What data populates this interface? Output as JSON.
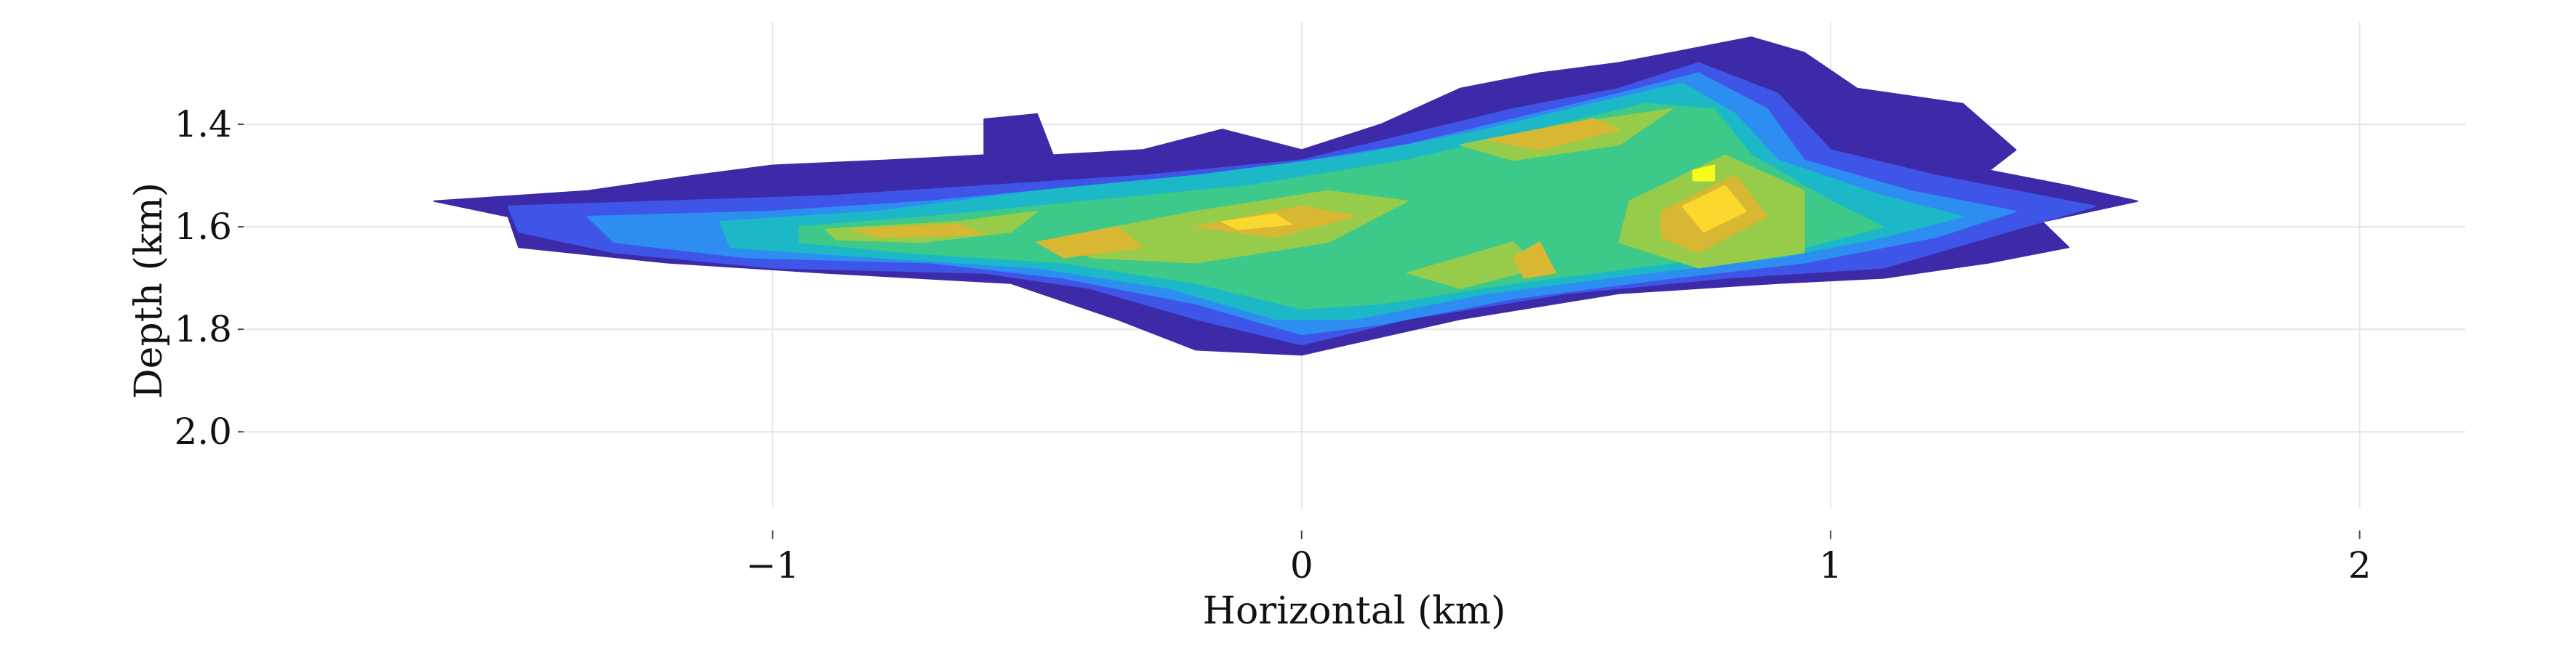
{
  "chart_data": {
    "type": "heatmap",
    "title": "",
    "xlabel": "Horizontal (km)",
    "ylabel": "Depth (km)",
    "xlim": [
      -2.0,
      2.2
    ],
    "ylim": [
      2.15,
      1.2
    ],
    "y_inverted": true,
    "grid": true,
    "x_ticks": [
      {
        "value": -1,
        "label": "−1"
      },
      {
        "value": 0,
        "label": "0"
      },
      {
        "value": 1,
        "label": "1"
      },
      {
        "value": 2,
        "label": "2"
      }
    ],
    "y_ticks": [
      {
        "value": 1.4,
        "label": "1.4"
      },
      {
        "value": 1.6,
        "label": "1.6"
      },
      {
        "value": 1.8,
        "label": "1.8"
      },
      {
        "value": 2.0,
        "label": "2.0"
      }
    ],
    "colormap": [
      "#3d2aa8",
      "#3f55e8",
      "#2e8df0",
      "#1cb8c8",
      "#3dc98a",
      "#96cc4a",
      "#d8b832",
      "#fbd82e",
      "#f9f91a"
    ],
    "levels": [
      {
        "level": 0,
        "color": "#3d2aa8",
        "regions": [
          [
            [
              -1.64,
              1.55
            ],
            [
              -1.35,
              1.53
            ],
            [
              -1.15,
              1.5
            ],
            [
              -1.0,
              1.48
            ],
            [
              -0.78,
              1.47
            ],
            [
              -0.6,
              1.46
            ],
            [
              -0.6,
              1.39
            ],
            [
              -0.5,
              1.38
            ],
            [
              -0.47,
              1.46
            ],
            [
              -0.3,
              1.45
            ],
            [
              -0.15,
              1.41
            ],
            [
              0.0,
              1.45
            ],
            [
              0.15,
              1.4
            ],
            [
              0.3,
              1.33
            ],
            [
              0.45,
              1.3
            ],
            [
              0.6,
              1.28
            ],
            [
              0.75,
              1.25
            ],
            [
              0.85,
              1.23
            ],
            [
              0.95,
              1.26
            ],
            [
              1.05,
              1.33
            ],
            [
              1.25,
              1.36
            ],
            [
              1.35,
              1.45
            ],
            [
              1.3,
              1.49
            ],
            [
              1.45,
              1.52
            ],
            [
              1.58,
              1.55
            ],
            [
              1.4,
              1.59
            ],
            [
              1.45,
              1.64
            ],
            [
              1.3,
              1.67
            ],
            [
              1.1,
              1.7
            ],
            [
              0.9,
              1.71
            ],
            [
              0.6,
              1.73
            ],
            [
              0.3,
              1.78
            ],
            [
              0.0,
              1.85
            ],
            [
              -0.2,
              1.84
            ],
            [
              -0.35,
              1.78
            ],
            [
              -0.55,
              1.71
            ],
            [
              -0.9,
              1.69
            ],
            [
              -1.2,
              1.67
            ],
            [
              -1.48,
              1.64
            ],
            [
              -1.5,
              1.58
            ]
          ]
        ]
      },
      {
        "level": 1,
        "color": "#3f55e8",
        "regions": [
          [
            [
              -1.5,
              1.56
            ],
            [
              -1.2,
              1.55
            ],
            [
              -0.9,
              1.54
            ],
            [
              -0.6,
              1.52
            ],
            [
              -0.3,
              1.5
            ],
            [
              0.0,
              1.47
            ],
            [
              0.2,
              1.42
            ],
            [
              0.4,
              1.37
            ],
            [
              0.6,
              1.33
            ],
            [
              0.75,
              1.28
            ],
            [
              0.9,
              1.34
            ],
            [
              1.0,
              1.45
            ],
            [
              1.2,
              1.5
            ],
            [
              1.5,
              1.56
            ],
            [
              1.3,
              1.62
            ],
            [
              1.1,
              1.68
            ],
            [
              0.8,
              1.7
            ],
            [
              0.5,
              1.73
            ],
            [
              0.2,
              1.78
            ],
            [
              0.0,
              1.83
            ],
            [
              -0.2,
              1.78
            ],
            [
              -0.4,
              1.72
            ],
            [
              -0.6,
              1.69
            ],
            [
              -1.0,
              1.68
            ],
            [
              -1.3,
              1.65
            ],
            [
              -1.48,
              1.61
            ]
          ]
        ]
      },
      {
        "level": 2,
        "color": "#2e8df0",
        "regions": [
          [
            [
              -1.35,
              1.58
            ],
            [
              -1.0,
              1.57
            ],
            [
              -0.7,
              1.55
            ],
            [
              -0.4,
              1.52
            ],
            [
              -0.1,
              1.49
            ],
            [
              0.2,
              1.44
            ],
            [
              0.4,
              1.39
            ],
            [
              0.6,
              1.34
            ],
            [
              0.75,
              1.3
            ],
            [
              0.88,
              1.37
            ],
            [
              0.95,
              1.47
            ],
            [
              1.15,
              1.53
            ],
            [
              1.35,
              1.57
            ],
            [
              1.2,
              1.62
            ],
            [
              0.95,
              1.67
            ],
            [
              0.7,
              1.7
            ],
            [
              0.4,
              1.74
            ],
            [
              0.15,
              1.79
            ],
            [
              0.0,
              1.81
            ],
            [
              -0.2,
              1.75
            ],
            [
              -0.45,
              1.7
            ],
            [
              -0.7,
              1.67
            ],
            [
              -1.05,
              1.66
            ],
            [
              -1.3,
              1.63
            ]
          ]
        ]
      },
      {
        "level": 3,
        "color": "#1cb8c8",
        "regions": [
          [
            [
              -1.1,
              1.59
            ],
            [
              -0.8,
              1.57
            ],
            [
              -0.5,
              1.53
            ],
            [
              -0.2,
              1.5
            ],
            [
              0.1,
              1.46
            ],
            [
              0.35,
              1.41
            ],
            [
              0.55,
              1.36
            ],
            [
              0.72,
              1.32
            ],
            [
              0.82,
              1.38
            ],
            [
              0.9,
              1.47
            ],
            [
              1.1,
              1.54
            ],
            [
              1.25,
              1.58
            ],
            [
              1.1,
              1.62
            ],
            [
              0.9,
              1.66
            ],
            [
              0.65,
              1.69
            ],
            [
              0.35,
              1.73
            ],
            [
              0.1,
              1.78
            ],
            [
              -0.05,
              1.78
            ],
            [
              -0.25,
              1.72
            ],
            [
              -0.5,
              1.68
            ],
            [
              -0.8,
              1.66
            ],
            [
              -1.08,
              1.64
            ]
          ]
        ]
      },
      {
        "level": 4,
        "color": "#3dc98a",
        "regions": [
          [
            [
              -0.95,
              1.6
            ],
            [
              -0.7,
              1.58
            ],
            [
              -0.4,
              1.55
            ],
            [
              -0.1,
              1.52
            ],
            [
              0.2,
              1.47
            ],
            [
              0.45,
              1.41
            ],
            [
              0.65,
              1.36
            ],
            [
              0.78,
              1.37
            ],
            [
              0.85,
              1.46
            ],
            [
              1.0,
              1.55
            ],
            [
              1.1,
              1.6
            ],
            [
              0.95,
              1.64
            ],
            [
              0.7,
              1.67
            ],
            [
              0.4,
              1.71
            ],
            [
              0.15,
              1.75
            ],
            [
              0.0,
              1.76
            ],
            [
              -0.2,
              1.71
            ],
            [
              -0.45,
              1.67
            ],
            [
              -0.75,
              1.65
            ],
            [
              -0.95,
              1.63
            ]
          ]
        ]
      },
      {
        "level": 5,
        "color": "#96cc4a",
        "regions": [
          [
            [
              -0.9,
              1.605
            ],
            [
              -0.65,
              1.59
            ],
            [
              -0.5,
              1.57
            ],
            [
              -0.55,
              1.61
            ],
            [
              -0.72,
              1.63
            ],
            [
              -0.88,
              1.625
            ]
          ],
          [
            [
              -0.45,
              1.62
            ],
            [
              -0.2,
              1.57
            ],
            [
              0.05,
              1.53
            ],
            [
              0.2,
              1.55
            ],
            [
              0.05,
              1.63
            ],
            [
              -0.2,
              1.67
            ],
            [
              -0.4,
              1.66
            ]
          ],
          [
            [
              0.3,
              1.44
            ],
            [
              0.5,
              1.4
            ],
            [
              0.7,
              1.37
            ],
            [
              0.6,
              1.44
            ],
            [
              0.4,
              1.47
            ]
          ],
          [
            [
              0.62,
              1.55
            ],
            [
              0.8,
              1.46
            ],
            [
              0.95,
              1.53
            ],
            [
              0.95,
              1.65
            ],
            [
              0.75,
              1.68
            ],
            [
              0.6,
              1.63
            ]
          ],
          [
            [
              0.2,
              1.69
            ],
            [
              0.4,
              1.63
            ],
            [
              0.45,
              1.68
            ],
            [
              0.3,
              1.72
            ]
          ]
        ]
      },
      {
        "level": 6,
        "color": "#d8b832",
        "regions": [
          [
            [
              -0.85,
              1.605
            ],
            [
              -0.65,
              1.595
            ],
            [
              -0.6,
              1.615
            ],
            [
              -0.8,
              1.62
            ]
          ],
          [
            [
              -0.5,
              1.63
            ],
            [
              -0.35,
              1.6
            ],
            [
              -0.3,
              1.64
            ],
            [
              -0.45,
              1.66
            ]
          ],
          [
            [
              -0.2,
              1.6
            ],
            [
              0.0,
              1.56
            ],
            [
              0.1,
              1.58
            ],
            [
              -0.05,
              1.62
            ]
          ],
          [
            [
              0.35,
              1.43
            ],
            [
              0.55,
              1.39
            ],
            [
              0.6,
              1.41
            ],
            [
              0.45,
              1.45
            ]
          ],
          [
            [
              0.68,
              1.57
            ],
            [
              0.82,
              1.5
            ],
            [
              0.88,
              1.58
            ],
            [
              0.75,
              1.65
            ],
            [
              0.68,
              1.62
            ]
          ],
          [
            [
              0.4,
              1.66
            ],
            [
              0.45,
              1.63
            ],
            [
              0.48,
              1.69
            ],
            [
              0.42,
              1.7
            ]
          ]
        ]
      },
      {
        "level": 7,
        "color": "#fbd82e",
        "regions": [
          [
            [
              0.72,
              1.56
            ],
            [
              0.8,
              1.52
            ],
            [
              0.84,
              1.57
            ],
            [
              0.76,
              1.61
            ]
          ],
          [
            [
              -0.15,
              1.59
            ],
            [
              -0.05,
              1.575
            ],
            [
              -0.02,
              1.595
            ],
            [
              -0.12,
              1.605
            ]
          ]
        ]
      },
      {
        "level": 8,
        "color": "#f9f91a",
        "regions": [
          [
            [
              0.74,
              1.49
            ],
            [
              0.78,
              1.48
            ],
            [
              0.78,
              1.51
            ],
            [
              0.74,
              1.51
            ]
          ]
        ]
      }
    ]
  }
}
